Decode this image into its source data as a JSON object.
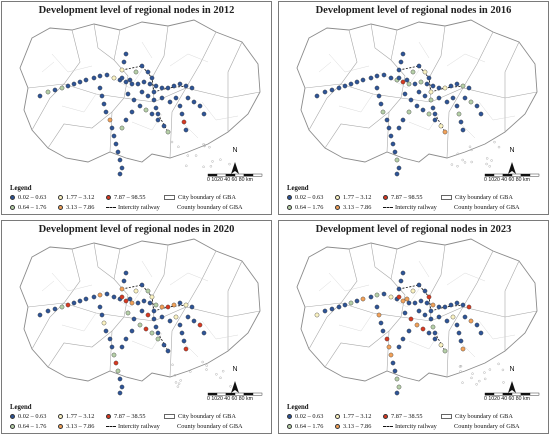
{
  "panels": [
    {
      "title": "Development level of regional nodes in 2012",
      "legend": {
        "title": "Legend",
        "classes": [
          {
            "label": "0.02 – 0.63",
            "color": "#2f5597"
          },
          {
            "label": "0.64 – 1.76",
            "color": "#b6d0a8"
          },
          {
            "label": "1.77 – 3.12",
            "color": "#fbf3c2"
          },
          {
            "label": "3.13 – 7.86",
            "color": "#f2a25a"
          },
          {
            "label": "7.87 – 98.55",
            "color": "#d63a23"
          }
        ],
        "railway_label": "Intercity railway",
        "city_boundary_label": "City boundary of GBA",
        "county_boundary_label": "County boundary of GBA"
      },
      "scale": {
        "label": "0 1020   40   60   80",
        "unit": "km"
      },
      "north": "N"
    },
    {
      "title": "Development level of regional nodes in 2016",
      "legend": {
        "title": "Legend",
        "classes": [
          {
            "label": "0.02 – 0.63",
            "color": "#2f5597"
          },
          {
            "label": "0.64 – 1.76",
            "color": "#b6d0a8"
          },
          {
            "label": "1.77 – 3.12",
            "color": "#fbf3c2"
          },
          {
            "label": "3.13 – 7.86",
            "color": "#f2a25a"
          },
          {
            "label": "7.87 – 98.55",
            "color": "#d63a23"
          }
        ],
        "railway_label": "Intercity railway",
        "city_boundary_label": "City boundary of GBA",
        "county_boundary_label": "County boundary of GBA"
      },
      "scale": {
        "label": "0 1020   40   60   80",
        "unit": "km"
      },
      "north": "N"
    },
    {
      "title": "Development level of regional nodes in 2020",
      "legend": {
        "title": "Legend",
        "classes": [
          {
            "label": "0.02 – 0.63",
            "color": "#2f5597"
          },
          {
            "label": "0.64 – 1.76",
            "color": "#b6d0a8"
          },
          {
            "label": "1.77 – 3.12",
            "color": "#fbf3c2"
          },
          {
            "label": "3.13 – 7.86",
            "color": "#f2a25a"
          },
          {
            "label": "7.87 – 38.55",
            "color": "#d63a23"
          }
        ],
        "railway_label": "Intercity railway",
        "city_boundary_label": "City boundary of GBA",
        "county_boundary_label": "County boundary of GBA"
      },
      "scale": {
        "label": "0 1020   40   60   80",
        "unit": "km"
      },
      "north": "N"
    },
    {
      "title": "Development level of regional nodes in 2023",
      "legend": {
        "title": "Legend",
        "classes": [
          {
            "label": "0.02 – 0.63",
            "color": "#2f5597"
          },
          {
            "label": "0.64 – 1.76",
            "color": "#b6d0a8"
          },
          {
            "label": "1.77 – 3.12",
            "color": "#fbf3c2"
          },
          {
            "label": "3.13 – 7.86",
            "color": "#f2a25a"
          },
          {
            "label": "7.87 – 38.55",
            "color": "#d63a23"
          }
        ],
        "railway_label": "Intercity railway",
        "city_boundary_label": "City boundary of GBA",
        "county_boundary_label": "County boundary of GBA"
      },
      "scale": {
        "label": "0 1020   40   60   80",
        "unit": "km"
      },
      "north": "N"
    }
  ]
}
